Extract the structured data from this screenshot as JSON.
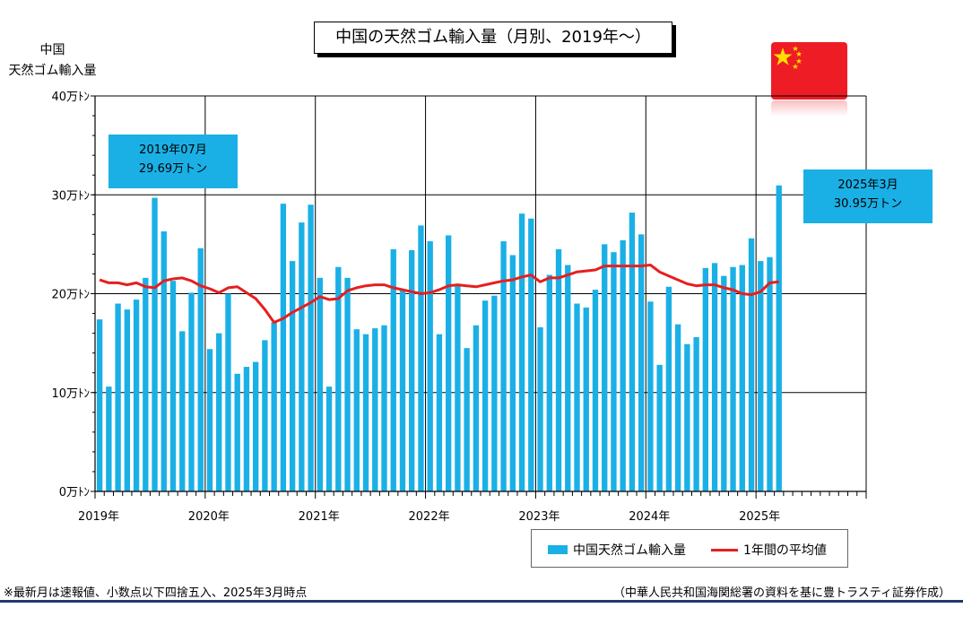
{
  "title": "中国の天然ゴム輸入量（月別、2019年～）",
  "y_axis_label_line1": "中国",
  "y_axis_label_line2": "天然ゴム輸入量",
  "callout_left": {
    "line1": "2019年07月",
    "line2": "29.69万トン"
  },
  "callout_right": {
    "line1": "2025年3月",
    "line2": "30.95万トン"
  },
  "legend": {
    "bars": "中国天然ゴム輸入量",
    "line": "1年間の平均値"
  },
  "note": "※最新月は速報値、小数点以下四捨五入、2025年3月時点",
  "source": "（中華人民共和国海関総署の資料を基に豊トラスティ証券作成）",
  "colors": {
    "bar": "#1ab0e6",
    "line": "#e51f1f",
    "flag": "#ee1c25",
    "flag_star": "#ffde00"
  },
  "flag_icon": "china-flag-icon",
  "chart_data": {
    "type": "bar",
    "title": "中国の天然ゴム輸入量（月別、2019年～）",
    "ylabel": "中国 天然ゴム輸入量",
    "ylim": [
      0,
      40
    ],
    "yticks": [
      "0万ﾄﾝ",
      "10万ﾄﾝ",
      "20万ﾄﾝ",
      "30万ﾄﾝ",
      "40万ﾄﾝ"
    ],
    "xticks": [
      "2019年",
      "2020年",
      "2021年",
      "2022年",
      "2023年",
      "2024年",
      "2025年"
    ],
    "total_months": 84,
    "grid": true,
    "legend_position": "bottom-right",
    "series": [
      {
        "name": "中国天然ゴム輸入量",
        "type": "bar",
        "values": [
          17.4,
          10.6,
          19.0,
          18.4,
          19.4,
          21.6,
          29.7,
          26.3,
          21.3,
          16.2,
          20.1,
          24.6,
          14.4,
          16.0,
          20.0,
          11.9,
          12.6,
          13.1,
          15.3,
          17.1,
          29.1,
          23.3,
          27.2,
          29.0,
          21.6,
          10.6,
          22.7,
          21.6,
          16.4,
          15.9,
          16.5,
          16.8,
          24.5,
          20.3,
          24.4,
          26.9,
          25.3,
          15.9,
          25.9,
          20.8,
          14.5,
          16.8,
          19.3,
          19.8,
          25.3,
          23.9,
          28.1,
          27.6,
          16.6,
          21.9,
          24.5,
          22.9,
          19.0,
          18.6,
          20.4,
          25.0,
          24.2,
          25.4,
          28.2,
          26.0,
          19.2,
          12.8,
          20.7,
          16.9,
          14.9,
          15.6,
          22.6,
          23.1,
          21.8,
          22.7,
          22.9,
          25.6,
          23.3,
          23.7,
          30.95
        ]
      },
      {
        "name": "1年間の平均値",
        "type": "line",
        "values": [
          21.4,
          21.1,
          21.1,
          20.9,
          21.1,
          20.7,
          20.6,
          21.3,
          21.5,
          21.6,
          21.3,
          20.8,
          20.5,
          20.1,
          20.6,
          20.7,
          20.1,
          19.5,
          18.4,
          17.1,
          17.5,
          18.1,
          18.6,
          19.1,
          19.7,
          19.4,
          19.5,
          20.3,
          20.6,
          20.8,
          20.9,
          20.9,
          20.6,
          20.4,
          20.2,
          20.0,
          20.1,
          20.4,
          20.8,
          20.9,
          20.8,
          20.7,
          20.9,
          21.1,
          21.3,
          21.4,
          21.7,
          21.9,
          21.2,
          21.6,
          21.6,
          21.9,
          22.2,
          22.3,
          22.4,
          22.8,
          22.8,
          22.8,
          22.8,
          22.8,
          22.9,
          22.2,
          21.8,
          21.4,
          21.0,
          20.8,
          20.9,
          20.9,
          20.6,
          20.4,
          20.0,
          19.9,
          20.2,
          21.1,
          21.2
        ]
      }
    ]
  }
}
